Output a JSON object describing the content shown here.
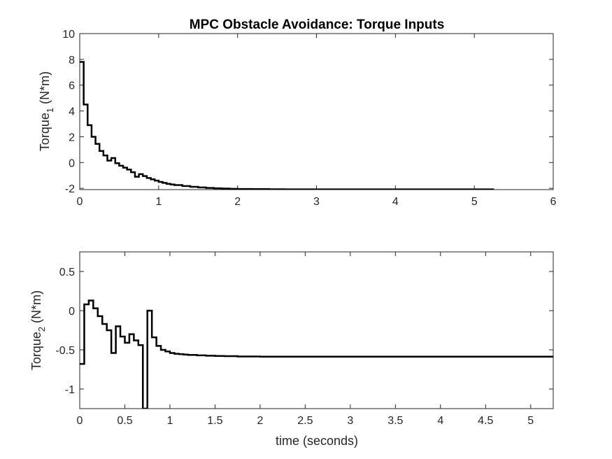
{
  "figure": {
    "background": "#ffffff",
    "line_color": "#000000"
  },
  "chart_data": [
    {
      "type": "line",
      "step": true,
      "title": "MPC Obstacle Avoidance: Torque Inputs",
      "xlabel": "",
      "ylabel": "Torque",
      "ylabel_sub": "1",
      "ylabel_unit": " (N*m)",
      "xlim": [
        0,
        6
      ],
      "ylim": [
        -2.1,
        10
      ],
      "xticks": [
        0,
        1,
        2,
        3,
        4,
        5,
        6
      ],
      "xtick_labels": [
        "0",
        "1",
        "2",
        "3",
        "4",
        "5",
        "6"
      ],
      "yticks": [
        -2,
        0,
        2,
        4,
        6,
        8,
        10
      ],
      "ytick_labels": [
        "-2",
        "0",
        "2",
        "4",
        "6",
        "8",
        "10"
      ],
      "grid": false,
      "series": [
        {
          "color": "#000000",
          "x": [
            0,
            0.05,
            0.1,
            0.15,
            0.2,
            0.25,
            0.3,
            0.35,
            0.4,
            0.45,
            0.5,
            0.55,
            0.6,
            0.65,
            0.7,
            0.75,
            0.8,
            0.85,
            0.9,
            0.95,
            1.0,
            1.05,
            1.1,
            1.15,
            1.2,
            1.3,
            1.4,
            1.5,
            1.6,
            1.7,
            1.8,
            1.9,
            2.0,
            2.2,
            2.4,
            2.6,
            3.0,
            5.25
          ],
          "y": [
            7.8,
            4.5,
            2.9,
            2.0,
            1.45,
            0.9,
            0.55,
            0.15,
            0.35,
            -0.05,
            -0.25,
            -0.4,
            -0.55,
            -0.75,
            -1.1,
            -0.9,
            -1.05,
            -1.2,
            -1.3,
            -1.4,
            -1.5,
            -1.58,
            -1.65,
            -1.7,
            -1.75,
            -1.82,
            -1.88,
            -1.93,
            -1.97,
            -2.0,
            -2.02,
            -2.04,
            -2.05,
            -2.06,
            -2.07,
            -2.08,
            -2.08,
            -2.08
          ]
        }
      ]
    },
    {
      "type": "line",
      "step": true,
      "title": "",
      "xlabel": "time (seconds)",
      "ylabel": "Torque",
      "ylabel_sub": "2",
      "ylabel_unit": " (N*m)",
      "xlim": [
        0,
        5.25
      ],
      "ylim": [
        -1.25,
        0.75
      ],
      "xticks": [
        0,
        0.5,
        1,
        1.5,
        2,
        2.5,
        3,
        3.5,
        4,
        4.5,
        5
      ],
      "xtick_labels": [
        "0",
        "0.5",
        "1",
        "1.5",
        "2",
        "2.5",
        "3",
        "3.5",
        "4",
        "4.5",
        "5"
      ],
      "yticks": [
        -1,
        -0.5,
        0,
        0.5
      ],
      "ytick_labels": [
        "-1",
        "-0.5",
        "0",
        "0.5"
      ],
      "grid": false,
      "series": [
        {
          "color": "#000000",
          "x": [
            0,
            0.05,
            0.1,
            0.15,
            0.2,
            0.25,
            0.3,
            0.35,
            0.4,
            0.45,
            0.5,
            0.55,
            0.6,
            0.65,
            0.7,
            0.75,
            0.8,
            0.85,
            0.9,
            0.95,
            1.0,
            1.05,
            1.1,
            1.15,
            1.2,
            1.3,
            1.4,
            1.5,
            1.6,
            1.75,
            2.0,
            3.0,
            5.25
          ],
          "y": [
            -0.68,
            0.08,
            0.13,
            0.03,
            -0.07,
            -0.17,
            -0.25,
            -0.54,
            -0.2,
            -0.33,
            -0.41,
            -0.3,
            -0.38,
            -0.44,
            -1.25,
            0.0,
            -0.34,
            -0.45,
            -0.5,
            -0.52,
            -0.54,
            -0.55,
            -0.555,
            -0.56,
            -0.565,
            -0.57,
            -0.575,
            -0.578,
            -0.58,
            -0.585,
            -0.587,
            -0.587,
            -0.587
          ]
        }
      ]
    }
  ]
}
